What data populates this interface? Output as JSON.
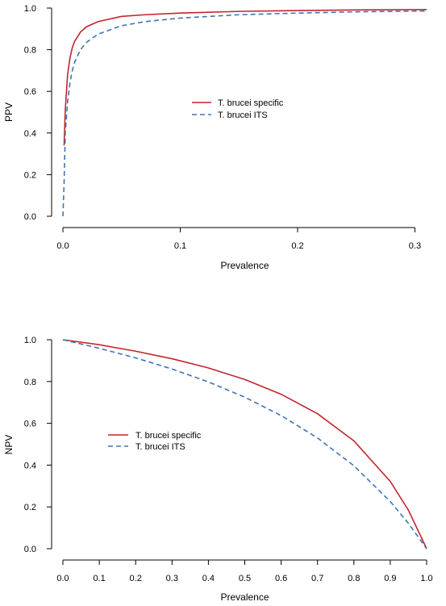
{
  "chart_data": [
    {
      "type": "line",
      "xlabel": "Prevalence",
      "ylabel": "PPV",
      "xlim": [
        0,
        0.31
      ],
      "ylim": [
        0,
        1.0
      ],
      "x_ticks": [
        "0.0",
        "0.1",
        "0.2",
        "0.3"
      ],
      "y_ticks": [
        "0.0",
        "0.2",
        "0.4",
        "0.6",
        "0.8",
        "1.0"
      ],
      "legend_placement": "center",
      "series": [
        {
          "name": "T. brucei specific",
          "color": "#c0272d",
          "line_style": "solid",
          "x": [
            0.001,
            0.002,
            0.004,
            0.006,
            0.008,
            0.01,
            0.015,
            0.02,
            0.03,
            0.05,
            0.07,
            0.1,
            0.15,
            0.2,
            0.25,
            0.31
          ],
          "y": [
            0.34,
            0.51,
            0.68,
            0.76,
            0.81,
            0.84,
            0.885,
            0.91,
            0.935,
            0.96,
            0.968,
            0.976,
            0.984,
            0.988,
            0.991,
            0.993
          ]
        },
        {
          "name": "T. brucei ITS",
          "color": "#3f74b5",
          "line_style": "dashed",
          "x": [
            0.0,
            0.001,
            0.002,
            0.004,
            0.006,
            0.008,
            0.01,
            0.015,
            0.02,
            0.03,
            0.05,
            0.07,
            0.1,
            0.15,
            0.2,
            0.25,
            0.31
          ],
          "y": [
            0.0,
            0.16,
            0.4,
            0.55,
            0.64,
            0.7,
            0.74,
            0.8,
            0.835,
            0.875,
            0.915,
            0.935,
            0.952,
            0.968,
            0.976,
            0.982,
            0.986
          ]
        }
      ]
    },
    {
      "type": "line",
      "xlabel": "Prevalence",
      "ylabel": "NPV",
      "xlim": [
        0,
        1.0
      ],
      "ylim": [
        0,
        1.0
      ],
      "x_ticks": [
        "0.0",
        "0.1",
        "0.2",
        "0.3",
        "0.4",
        "0.5",
        "0.6",
        "0.7",
        "0.8",
        "0.9",
        "1.0"
      ],
      "y_ticks": [
        "0.0",
        "0.2",
        "0.4",
        "0.6",
        "0.8",
        "1.0"
      ],
      "legend_placement": "left-center",
      "series": [
        {
          "name": "T. brucei specific",
          "color": "#c0272d",
          "line_style": "solid",
          "x": [
            0.0,
            0.1,
            0.2,
            0.3,
            0.4,
            0.5,
            0.6,
            0.7,
            0.8,
            0.9,
            0.95,
            1.0
          ],
          "y": [
            1.0,
            0.976,
            0.945,
            0.909,
            0.865,
            0.81,
            0.739,
            0.646,
            0.516,
            0.322,
            0.184,
            0.0
          ]
        },
        {
          "name": "T. brucei ITS",
          "color": "#3f74b5",
          "line_style": "dashed",
          "x": [
            0.0,
            0.1,
            0.2,
            0.3,
            0.4,
            0.5,
            0.6,
            0.7,
            0.8,
            0.9,
            0.95,
            1.0
          ],
          "y": [
            1.0,
            0.959,
            0.913,
            0.86,
            0.798,
            0.725,
            0.637,
            0.53,
            0.397,
            0.226,
            0.121,
            0.0
          ]
        }
      ]
    }
  ]
}
